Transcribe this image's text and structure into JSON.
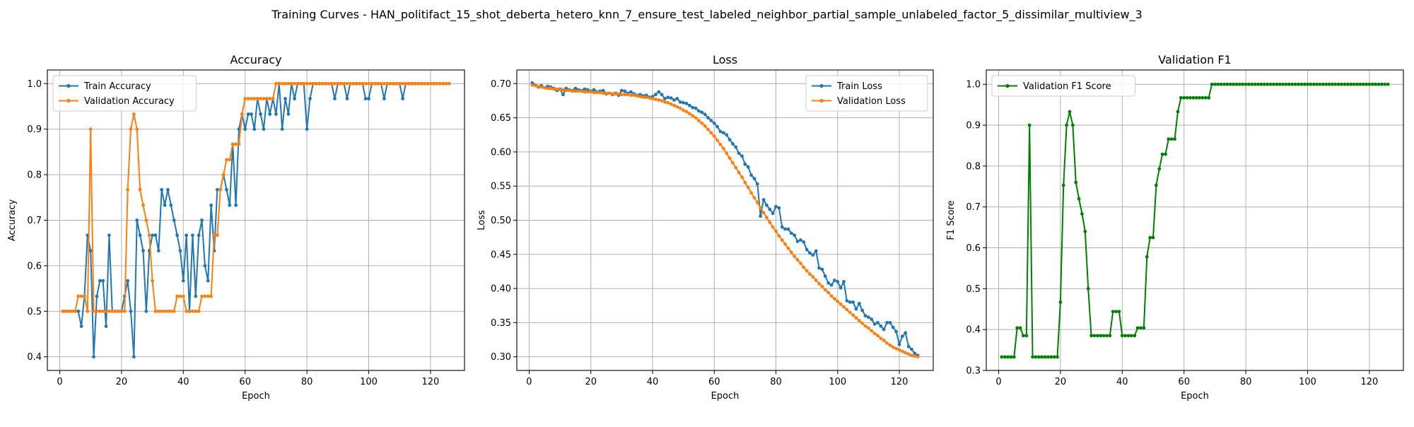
{
  "figure": {
    "suptitle": "Training Curves - HAN_politifact_15_shot_deberta_hetero_knn_7_ensure_test_labeled_neighbor_partial_sample_unlabeled_factor_5_dissimilar_multiview_3"
  },
  "colors": {
    "blue": "#1f77b4",
    "orange": "#ff7f0e",
    "green": "#008000",
    "grid": "#b0b0b0"
  },
  "chart_data": [
    {
      "type": "line",
      "title": "Accuracy",
      "xlabel": "Epoch",
      "ylabel": "Accuracy",
      "xlim": [
        -4,
        131
      ],
      "ylim": [
        0.37,
        1.03
      ],
      "xticks": [
        0,
        20,
        40,
        60,
        80,
        100,
        120
      ],
      "yticks": [
        0.4,
        0.5,
        0.6,
        0.7,
        0.8,
        0.9,
        1.0
      ],
      "ytick_decimals": 1,
      "grid": true,
      "legend_position": "upper-left",
      "series": [
        {
          "name": "Train Accuracy",
          "color": "#1f77b4",
          "x_start": 1,
          "values": [
            0.5,
            0.5,
            0.5,
            0.5,
            0.5,
            0.5,
            0.467,
            0.533,
            0.667,
            0.633,
            0.4,
            0.533,
            0.567,
            0.567,
            0.467,
            0.667,
            0.5,
            0.5,
            0.5,
            0.5,
            0.533,
            0.567,
            0.5,
            0.4,
            0.7,
            0.667,
            0.633,
            0.5,
            0.633,
            0.667,
            0.667,
            0.633,
            0.767,
            0.733,
            0.767,
            0.733,
            0.7,
            0.667,
            0.633,
            0.567,
            0.667,
            0.5,
            0.667,
            0.533,
            0.667,
            0.7,
            0.6,
            0.567,
            0.733,
            0.633,
            0.767,
            0.767,
            0.8,
            0.767,
            0.733,
            0.867,
            0.733,
            0.9,
            0.933,
            0.9,
            0.933,
            0.933,
            0.9,
            0.967,
            0.933,
            0.9,
            0.967,
            0.933,
            0.967,
            0.933,
            1.0,
            0.9,
            0.967,
            0.933,
            1.0,
            0.967,
            1.0,
            1.0,
            1.0,
            0.9,
            0.967,
            1.0,
            1.0,
            1.0,
            1.0,
            1.0,
            1.0,
            1.0,
            0.967,
            1.0,
            1.0,
            1.0,
            0.967,
            1.0,
            1.0,
            1.0,
            1.0,
            1.0,
            0.967,
            0.967,
            1.0,
            1.0,
            1.0,
            1.0,
            0.967,
            1.0,
            1.0,
            1.0,
            1.0,
            1.0,
            0.967,
            1.0,
            1.0,
            1.0,
            1.0,
            1.0,
            1.0,
            1.0,
            1.0,
            1.0,
            1.0,
            1.0,
            1.0,
            1.0,
            1.0,
            1.0
          ]
        },
        {
          "name": "Validation Accuracy",
          "color": "#ff7f0e",
          "x_start": 1,
          "values": [
            0.5,
            0.5,
            0.5,
            0.5,
            0.5,
            0.533,
            0.533,
            0.533,
            0.5,
            0.9,
            0.5,
            0.5,
            0.5,
            0.5,
            0.5,
            0.5,
            0.5,
            0.5,
            0.5,
            0.5,
            0.5,
            0.767,
            0.9,
            0.933,
            0.9,
            0.767,
            0.733,
            0.7,
            0.667,
            0.567,
            0.5,
            0.5,
            0.5,
            0.5,
            0.5,
            0.5,
            0.5,
            0.533,
            0.533,
            0.533,
            0.5,
            0.5,
            0.5,
            0.5,
            0.5,
            0.533,
            0.533,
            0.533,
            0.533,
            0.667,
            0.667,
            0.767,
            0.8,
            0.833,
            0.833,
            0.867,
            0.867,
            0.867,
            0.933,
            0.967,
            0.967,
            0.967,
            0.967,
            0.967,
            0.967,
            0.967,
            0.967,
            0.967,
            0.967,
            1.0,
            1.0,
            1.0,
            1.0,
            1.0,
            1.0,
            1.0,
            1.0,
            1.0,
            1.0,
            1.0,
            1.0,
            1.0,
            1.0,
            1.0,
            1.0,
            1.0,
            1.0,
            1.0,
            1.0,
            1.0,
            1.0,
            1.0,
            1.0,
            1.0,
            1.0,
            1.0,
            1.0,
            1.0,
            1.0,
            1.0,
            1.0,
            1.0,
            1.0,
            1.0,
            1.0,
            1.0,
            1.0,
            1.0,
            1.0,
            1.0,
            1.0,
            1.0,
            1.0,
            1.0,
            1.0,
            1.0,
            1.0,
            1.0,
            1.0,
            1.0,
            1.0,
            1.0,
            1.0,
            1.0,
            1.0,
            1.0
          ]
        }
      ]
    },
    {
      "type": "line",
      "title": "Loss",
      "xlabel": "Epoch",
      "ylabel": "Loss",
      "xlim": [
        -4,
        131
      ],
      "ylim": [
        0.28,
        0.72
      ],
      "xticks": [
        0,
        20,
        40,
        60,
        80,
        100,
        120
      ],
      "yticks": [
        0.3,
        0.35,
        0.4,
        0.45,
        0.5,
        0.55,
        0.6,
        0.65,
        0.7
      ],
      "ytick_decimals": 2,
      "grid": true,
      "legend_position": "upper-right",
      "series": [
        {
          "name": "Train Loss",
          "color": "#1f77b4",
          "x_start": 1,
          "values": [
            0.701,
            0.698,
            0.695,
            0.697,
            0.694,
            0.696,
            0.695,
            0.693,
            0.69,
            0.692,
            0.684,
            0.693,
            0.691,
            0.69,
            0.693,
            0.691,
            0.69,
            0.692,
            0.691,
            0.689,
            0.691,
            0.688,
            0.689,
            0.69,
            0.685,
            0.686,
            0.684,
            0.686,
            0.683,
            0.69,
            0.689,
            0.686,
            0.688,
            0.685,
            0.683,
            0.684,
            0.682,
            0.683,
            0.68,
            0.681,
            0.684,
            0.688,
            0.684,
            0.678,
            0.68,
            0.679,
            0.676,
            0.678,
            0.673,
            0.672,
            0.671,
            0.668,
            0.665,
            0.664,
            0.66,
            0.658,
            0.655,
            0.65,
            0.646,
            0.642,
            0.637,
            0.63,
            0.628,
            0.625,
            0.618,
            0.612,
            0.607,
            0.598,
            0.594,
            0.582,
            0.578,
            0.566,
            0.561,
            0.553,
            0.506,
            0.53,
            0.522,
            0.516,
            0.51,
            0.52,
            0.518,
            0.49,
            0.487,
            0.487,
            0.481,
            0.478,
            0.469,
            0.471,
            0.468,
            0.457,
            0.452,
            0.449,
            0.455,
            0.43,
            0.428,
            0.418,
            0.408,
            0.405,
            0.412,
            0.41,
            0.401,
            0.41,
            0.382,
            0.38,
            0.38,
            0.37,
            0.378,
            0.368,
            0.36,
            0.358,
            0.355,
            0.348,
            0.35,
            0.345,
            0.34,
            0.35,
            0.35,
            0.343,
            0.337,
            0.318,
            0.33,
            0.335,
            0.315,
            0.311,
            0.305,
            0.302
          ]
        },
        {
          "name": "Validation Loss",
          "color": "#ff7f0e",
          "x_start": 1,
          "values": [
            0.698,
            0.697,
            0.696,
            0.695,
            0.694,
            0.693,
            0.693,
            0.692,
            0.692,
            0.691,
            0.691,
            0.69,
            0.69,
            0.689,
            0.689,
            0.689,
            0.689,
            0.688,
            0.688,
            0.688,
            0.687,
            0.687,
            0.687,
            0.686,
            0.686,
            0.686,
            0.685,
            0.685,
            0.685,
            0.684,
            0.684,
            0.684,
            0.683,
            0.683,
            0.682,
            0.681,
            0.68,
            0.68,
            0.679,
            0.678,
            0.677,
            0.676,
            0.675,
            0.673,
            0.672,
            0.67,
            0.668,
            0.666,
            0.664,
            0.661,
            0.659,
            0.656,
            0.653,
            0.65,
            0.646,
            0.642,
            0.638,
            0.633,
            0.628,
            0.623,
            0.617,
            0.611,
            0.605,
            0.598,
            0.591,
            0.584,
            0.577,
            0.57,
            0.563,
            0.555,
            0.548,
            0.54,
            0.533,
            0.526,
            0.518,
            0.511,
            0.504,
            0.497,
            0.49,
            0.484,
            0.477,
            0.471,
            0.465,
            0.459,
            0.453,
            0.447,
            0.442,
            0.437,
            0.431,
            0.426,
            0.421,
            0.417,
            0.412,
            0.407,
            0.403,
            0.398,
            0.394,
            0.389,
            0.385,
            0.381,
            0.377,
            0.373,
            0.369,
            0.365,
            0.361,
            0.357,
            0.353,
            0.349,
            0.345,
            0.342,
            0.338,
            0.334,
            0.331,
            0.327,
            0.324,
            0.32,
            0.317,
            0.314,
            0.312,
            0.31,
            0.308,
            0.306,
            0.304,
            0.302,
            0.301,
            0.3
          ]
        }
      ]
    },
    {
      "type": "line",
      "title": "Validation F1",
      "xlabel": "Epoch",
      "ylabel": "F1 Score",
      "xlim": [
        -4,
        131
      ],
      "ylim": [
        0.3,
        1.035
      ],
      "xticks": [
        0,
        20,
        40,
        60,
        80,
        100,
        120
      ],
      "yticks": [
        0.3,
        0.4,
        0.5,
        0.6,
        0.7,
        0.8,
        0.9,
        1.0
      ],
      "ytick_decimals": 1,
      "grid": true,
      "legend_position": "upper-left",
      "series": [
        {
          "name": "Validation F1 Score",
          "color": "#008000",
          "x_start": 1,
          "values": [
            0.333,
            0.333,
            0.333,
            0.333,
            0.333,
            0.404,
            0.404,
            0.385,
            0.385,
            0.9,
            0.333,
            0.333,
            0.333,
            0.333,
            0.333,
            0.333,
            0.333,
            0.333,
            0.333,
            0.467,
            0.753,
            0.9,
            0.933,
            0.9,
            0.76,
            0.72,
            0.683,
            0.64,
            0.5,
            0.385,
            0.385,
            0.385,
            0.385,
            0.385,
            0.385,
            0.385,
            0.444,
            0.444,
            0.444,
            0.385,
            0.385,
            0.385,
            0.385,
            0.385,
            0.404,
            0.404,
            0.404,
            0.578,
            0.625,
            0.625,
            0.753,
            0.793,
            0.829,
            0.829,
            0.866,
            0.866,
            0.866,
            0.933,
            0.967,
            0.967,
            0.967,
            0.967,
            0.967,
            0.967,
            0.967,
            0.967,
            0.967,
            0.967,
            1.0,
            1.0,
            1.0,
            1.0,
            1.0,
            1.0,
            1.0,
            1.0,
            1.0,
            1.0,
            1.0,
            1.0,
            1.0,
            1.0,
            1.0,
            1.0,
            1.0,
            1.0,
            1.0,
            1.0,
            1.0,
            1.0,
            1.0,
            1.0,
            1.0,
            1.0,
            1.0,
            1.0,
            1.0,
            1.0,
            1.0,
            1.0,
            1.0,
            1.0,
            1.0,
            1.0,
            1.0,
            1.0,
            1.0,
            1.0,
            1.0,
            1.0,
            1.0,
            1.0,
            1.0,
            1.0,
            1.0,
            1.0,
            1.0,
            1.0,
            1.0,
            1.0,
            1.0,
            1.0,
            1.0,
            1.0,
            1.0,
            1.0
          ]
        }
      ]
    }
  ]
}
